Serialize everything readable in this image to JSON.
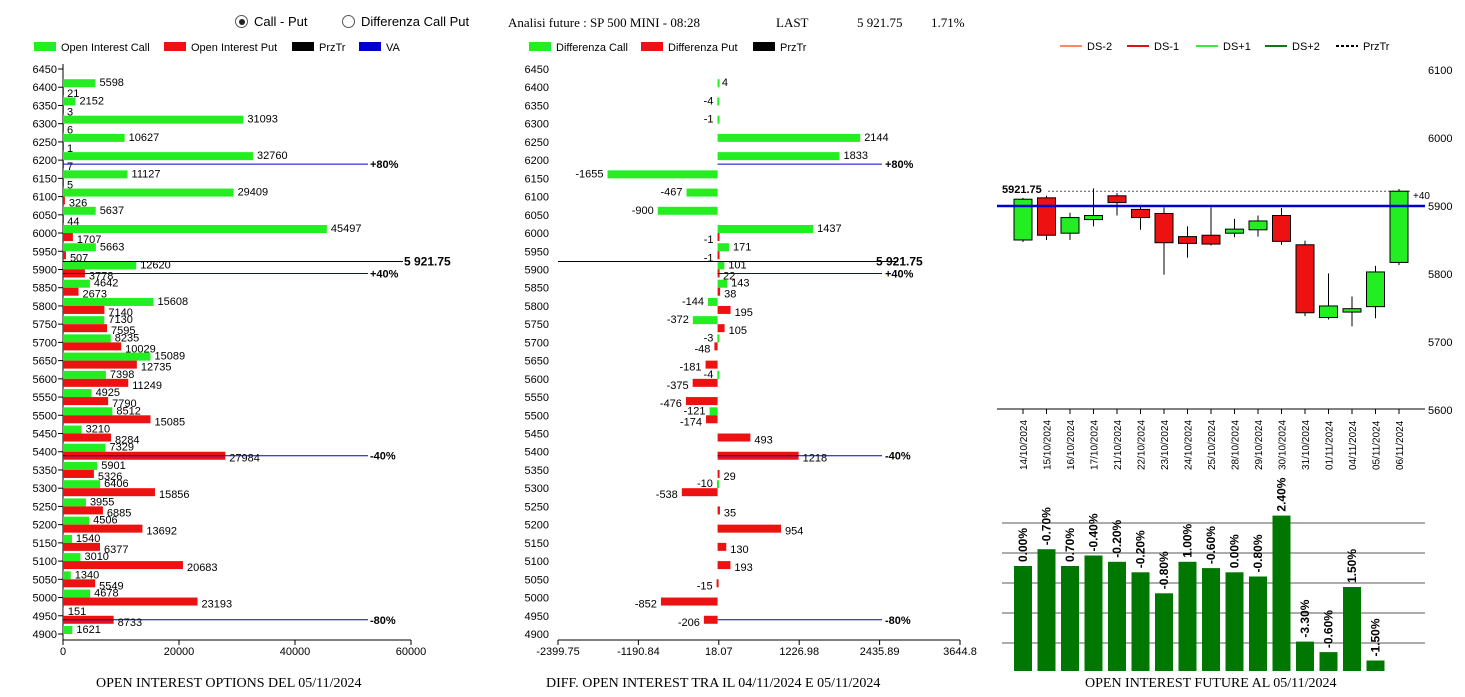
{
  "header": {
    "radio_call_put": "Call - Put",
    "radio_diff": "Differenza Call Put",
    "title": "Analisi future : SP 500 MINI - 08:28",
    "last_label": "LAST",
    "last_value": "5 921.75",
    "change": "1.71%"
  },
  "captions": {
    "oi_options": "OPEN INTEREST OPTIONS DEL 05/11/2024",
    "oi_diff": "DIFF. OPEN INTEREST TRA IL 04/11/2024 E 05/11/2024",
    "oi_future": "OPEN INTEREST FUTURE AL 05/11/2024"
  },
  "colors": {
    "call": "#22ee22",
    "put": "#ee1111",
    "przTr": "#000000",
    "va": "#0000cc",
    "candle_up": "#22ee22",
    "candle_down": "#ee1111",
    "oi_bar": "#007700",
    "ma": "#0000cc"
  },
  "chart_data": [
    {
      "type": "bar",
      "orientation": "horizontal",
      "legend": [
        "Open Interest Call",
        "Open Interest Put",
        "PrzTr",
        "VA"
      ],
      "strikes": [
        6400,
        6350,
        6300,
        6250,
        6200,
        6150,
        6100,
        6050,
        6000,
        5950,
        5900,
        5850,
        5800,
        5750,
        5700,
        5650,
        5600,
        5550,
        5500,
        5450,
        5400,
        5350,
        5300,
        5250,
        5200,
        5150,
        5100,
        5050,
        5000,
        4950,
        4900
      ],
      "call": [
        5598,
        2152,
        31093,
        10627,
        32760,
        11127,
        29409,
        5637,
        45497,
        5663,
        12620,
        4642,
        15608,
        7130,
        8235,
        15089,
        7398,
        4925,
        8512,
        3210,
        7329,
        5901,
        6406,
        3955,
        4506,
        1540,
        3010,
        1340,
        4678,
        151,
        1621
      ],
      "put": [
        21,
        3,
        6,
        1,
        7,
        5,
        326,
        44,
        1707,
        507,
        3778,
        2673,
        7140,
        7595,
        10029,
        12735,
        11249,
        7790,
        15085,
        8284,
        27984,
        5326,
        15856,
        6885,
        13692,
        6377,
        20683,
        5549,
        23193,
        8733,
        null
      ],
      "y_ticks": [
        6450,
        6400,
        6350,
        6300,
        6250,
        6200,
        6150,
        6100,
        6050,
        6000,
        5950,
        5900,
        5850,
        5800,
        5750,
        5700,
        5650,
        5600,
        5550,
        5500,
        5450,
        5400,
        5350,
        5300,
        5250,
        5200,
        5150,
        5100,
        5050,
        5000,
        4950,
        4900
      ],
      "x_ticks": [
        "0",
        "20000",
        "40000",
        "60000"
      ],
      "xlim": [
        0,
        60000
      ],
      "price_line": {
        "value": 5921.75,
        "label": "5 921.75"
      },
      "levels": [
        {
          "strike": 6200,
          "label": "+80%"
        },
        {
          "strike": 5900,
          "label": "+40%"
        },
        {
          "strike": 5400,
          "label": "-40%"
        },
        {
          "strike": 4950,
          "label": "-80%"
        }
      ]
    },
    {
      "type": "bar",
      "orientation": "horizontal",
      "legend": [
        "Differenza Call",
        "Differenza Put",
        "PrzTr"
      ],
      "strikes": [
        6400,
        6350,
        6300,
        6250,
        6200,
        6150,
        6100,
        6050,
        6000,
        5950,
        5900,
        5850,
        5800,
        5750,
        5700,
        5650,
        5600,
        5550,
        5500,
        5450,
        5400,
        5350,
        5300,
        5250,
        5200,
        5150,
        5100,
        5050,
        5000,
        4950
      ],
      "call": [
        4,
        -4,
        -1,
        2144,
        1833,
        -1655,
        -467,
        -900,
        1437,
        171,
        101,
        143,
        -144,
        -372,
        -3,
        null,
        -4,
        null,
        -121,
        null,
        null,
        null,
        -10,
        null,
        null,
        null,
        null,
        null,
        null,
        null
      ],
      "put": [
        null,
        null,
        null,
        null,
        null,
        null,
        null,
        null,
        -1,
        -1,
        22,
        38,
        195,
        105,
        -48,
        -181,
        -375,
        -476,
        -174,
        493,
        1218,
        29,
        -538,
        35,
        954,
        130,
        193,
        -15,
        -852,
        -206
      ],
      "y_ticks": [
        6450,
        6400,
        6350,
        6300,
        6250,
        6200,
        6150,
        6100,
        6050,
        6000,
        5950,
        5900,
        5850,
        5800,
        5750,
        5700,
        5650,
        5600,
        5550,
        5500,
        5450,
        5400,
        5350,
        5300,
        5250,
        5200,
        5150,
        5100,
        5050,
        5000,
        4950,
        4900
      ],
      "x_ticks": [
        "-2399.75",
        "-1190.84",
        "18.07",
        "1226.98",
        "2435.89",
        "3644.8"
      ],
      "xlim": [
        -2399.75,
        3644.8
      ],
      "price_line": {
        "value": 5921.75,
        "label": "5 921.75"
      },
      "levels": [
        {
          "strike": 6200,
          "label": "+80%"
        },
        {
          "strike": 5900,
          "label": "+40%"
        },
        {
          "strike": 5400,
          "label": "-40%"
        },
        {
          "strike": 4950,
          "label": "-80%"
        }
      ]
    },
    {
      "type": "candlestick",
      "legend": [
        "DS-2",
        "DS-1",
        "DS+1",
        "DS+2",
        "PrzTr"
      ],
      "dates": [
        "14/10/2024",
        "15/10/2024",
        "16/10/2024",
        "17/10/2024",
        "21/10/2024",
        "22/10/2024",
        "23/10/2024",
        "24/10/2024",
        "25/10/2024",
        "28/10/2024",
        "29/10/2024",
        "30/10/2024",
        "31/10/2024",
        "01/11/2024",
        "04/11/2024",
        "05/11/2024",
        "06/11/2024"
      ],
      "open": [
        5850,
        5912,
        5860,
        5880,
        5915,
        5895,
        5889,
        5855,
        5857,
        5860,
        5865,
        5886,
        5843,
        5736,
        5744,
        5752,
        5817
      ],
      "close": [
        5910,
        5857,
        5883,
        5886,
        5905,
        5883,
        5846,
        5845,
        5844,
        5866,
        5878,
        5848,
        5743,
        5753,
        5749,
        5803,
        5921.75
      ],
      "high": [
        5912,
        5915,
        5890,
        5926,
        5919,
        5901,
        5898,
        5870,
        5898,
        5881,
        5886,
        5897,
        5849,
        5801,
        5767,
        5812,
        5925
      ],
      "low": [
        5847,
        5850,
        5850,
        5870,
        5886,
        5865,
        5799,
        5824,
        5842,
        5854,
        5855,
        5843,
        5738,
        5733,
        5723,
        5735,
        5813
      ],
      "price_label": "5921.75",
      "price_tag": "+40",
      "va_level": 5900,
      "y_ticks": [
        6100,
        6000,
        5900,
        5800,
        5700,
        5600
      ],
      "ylim": [
        5600,
        6100
      ]
    },
    {
      "type": "bar",
      "categories": [
        "14/10/2024",
        "15/10/2024",
        "16/10/2024",
        "17/10/2024",
        "21/10/2024",
        "22/10/2024",
        "23/10/2024",
        "24/10/2024",
        "25/10/2024",
        "28/10/2024",
        "29/10/2024",
        "30/10/2024",
        "31/10/2024",
        "01/11/2024",
        "04/11/2024",
        "05/11/2024",
        "06/11/2024"
      ],
      "values": [
        50,
        58,
        50,
        55,
        52,
        47,
        37,
        52,
        49,
        47,
        45,
        74,
        14,
        9,
        40,
        5
      ],
      "labels": [
        "0.00%",
        "-0.70%",
        "0.70%",
        "-0.40%",
        "-0.20%",
        "-0.20%",
        "-0.80%",
        "1.00%",
        "-0.60%",
        "0.00%",
        "-0.80%",
        "2.40%",
        "-3.30%",
        "-0.60%",
        "1.50%",
        "-1.50%"
      ]
    }
  ]
}
